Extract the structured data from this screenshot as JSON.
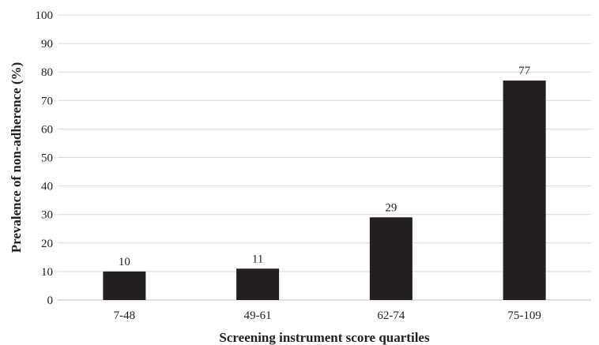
{
  "chart_data": {
    "type": "bar",
    "title": "",
    "xlabel": "Screening instrument score quartiles",
    "ylabel": "Prevalence of non-adherence (%)",
    "categories": [
      "7-48",
      "49-61",
      "62-74",
      "75-109"
    ],
    "values": [
      10,
      11,
      29,
      77
    ],
    "data_labels": [
      "10",
      "11",
      "29",
      "77"
    ],
    "ylim": [
      0,
      100
    ],
    "yticks": [
      0,
      10,
      20,
      30,
      40,
      50,
      60,
      70,
      80,
      90,
      100
    ],
    "grid": true,
    "legend": "none",
    "bar_color": "#231f20",
    "grid_color": "#d9d9d9"
  }
}
